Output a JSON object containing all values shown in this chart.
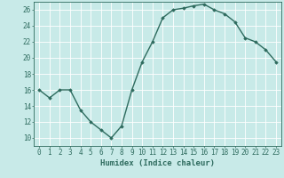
{
  "title": "",
  "xlabel": "Humidex (Indice chaleur)",
  "ylabel": "",
  "x": [
    0,
    1,
    2,
    3,
    4,
    5,
    6,
    7,
    8,
    9,
    10,
    11,
    12,
    13,
    14,
    15,
    16,
    17,
    18,
    19,
    20,
    21,
    22,
    23
  ],
  "y": [
    16,
    15,
    16,
    16,
    13.5,
    12,
    11,
    10,
    11.5,
    16,
    19.5,
    22,
    25,
    26,
    26.2,
    26.5,
    26.7,
    26,
    25.5,
    24.5,
    22.5,
    22,
    21,
    19.5
  ],
  "line_color": "#2e6b5e",
  "marker": "D",
  "marker_size": 1.8,
  "background_color": "#c8eae8",
  "grid_color": "#ffffff",
  "tick_color": "#2e6b5e",
  "label_color": "#2e6b5e",
  "ylim": [
    9,
    27
  ],
  "yticks": [
    10,
    12,
    14,
    16,
    18,
    20,
    22,
    24,
    26
  ],
  "xlim": [
    -0.5,
    23.5
  ],
  "xticks": [
    0,
    1,
    2,
    3,
    4,
    5,
    6,
    7,
    8,
    9,
    10,
    11,
    12,
    13,
    14,
    15,
    16,
    17,
    18,
    19,
    20,
    21,
    22,
    23
  ],
  "linewidth": 1.0,
  "font_size": 5.5,
  "xlabel_font_size": 6.5
}
